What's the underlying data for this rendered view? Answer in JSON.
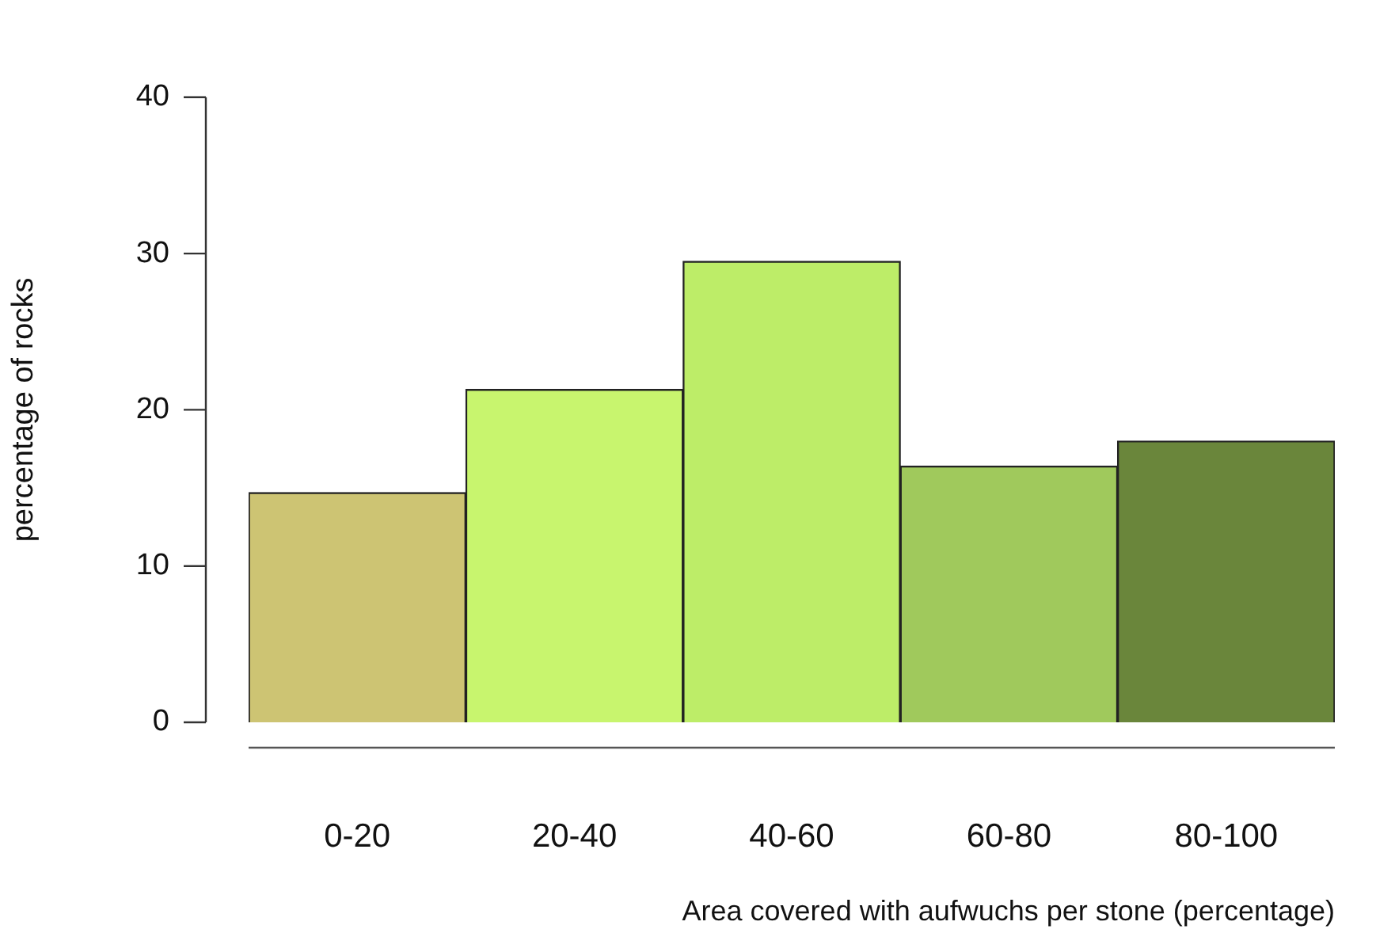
{
  "chart_data": {
    "type": "bar",
    "xlabel": "Area covered with aufwuchs per stone (percentage)",
    "ylabel": "percentage of rocks",
    "categories": [
      "0-20",
      "20-40",
      "40-60",
      "60-80",
      "80-100"
    ],
    "values": [
      14.7,
      21.3,
      29.5,
      16.4,
      18.0
    ],
    "colors": [
      "#cdc473",
      "#c8f56e",
      "#bded68",
      "#a0c95c",
      "#6a863b"
    ],
    "ylim": [
      0,
      40
    ],
    "yticks": [
      0,
      10,
      20,
      30,
      40
    ],
    "grid": false,
    "legend": false
  }
}
